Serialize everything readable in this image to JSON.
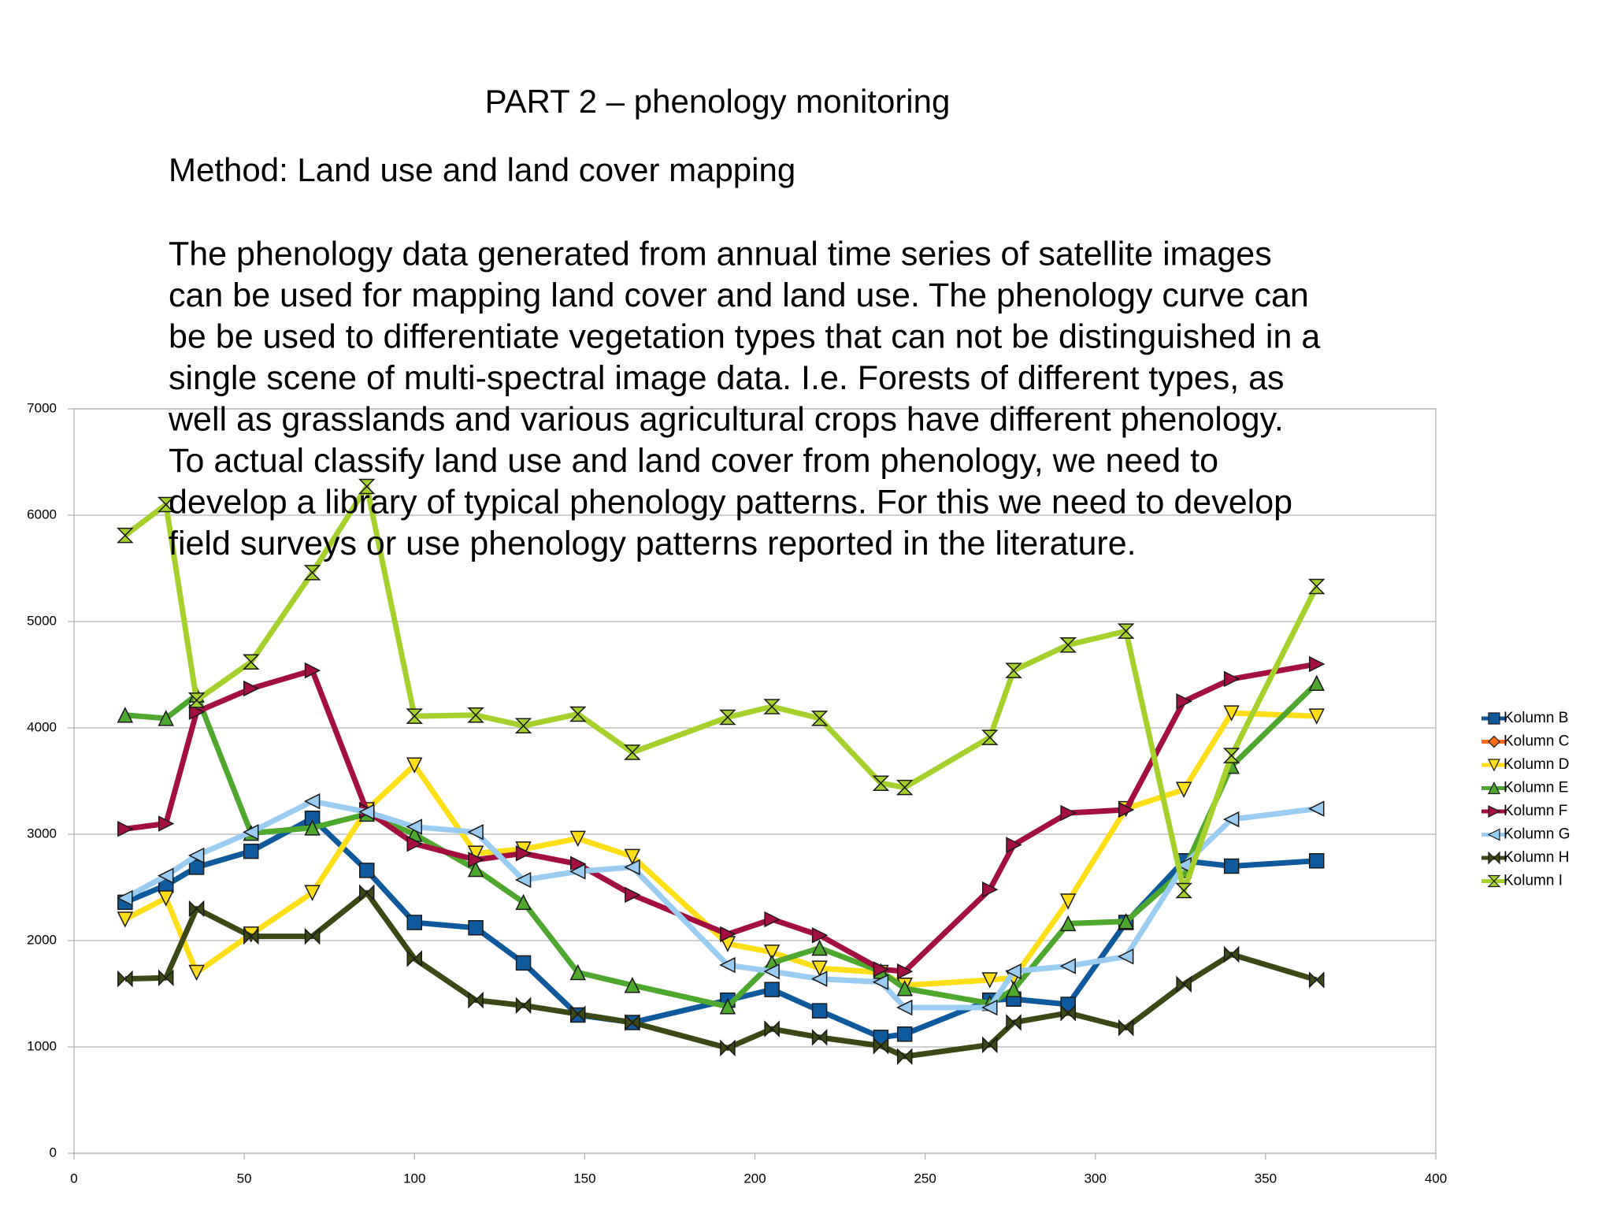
{
  "slide": {
    "title": "PART 2 – phenology monitoring",
    "method": "Method: Land use and land cover mapping",
    "paragraph": [
      "The phenology data generated from annual time series of satellite images",
      "can be used for mapping land cover and land use. The  phenology curve can",
      "be be used to differentiate vegetation types that can not be distinguished in a",
      "single scene of multi-spectral image data. I.e. Forests of different types, as",
      "well as grasslands and various agricultural crops have different phenology.",
      "To actual classify land use and land cover from phenology, we need to",
      "develop a library of typical phenology patterns. For this we need to develop",
      "field surveys or use phenology patterns reported in the literature."
    ]
  },
  "chart_data": {
    "type": "line",
    "x": [
      15,
      27,
      36,
      52,
      70,
      86,
      100,
      118,
      132,
      148,
      164,
      192,
      205,
      219,
      237,
      244,
      269,
      276,
      292,
      309,
      326,
      340,
      365
    ],
    "xlim": [
      0,
      400
    ],
    "xticks": [
      0,
      50,
      100,
      150,
      200,
      250,
      300,
      350,
      400
    ],
    "ylim": [
      0,
      7000
    ],
    "yticks": [
      0,
      1000,
      2000,
      3000,
      4000,
      5000,
      6000,
      7000
    ],
    "grid": true,
    "legend": "right",
    "series": [
      {
        "name": "Kolumn B",
        "color": "#0f5a9c",
        "marker": "square",
        "values": [
          2360,
          2520,
          2690,
          2840,
          3150,
          2660,
          2170,
          2120,
          1790,
          1300,
          1230,
          1440,
          1540,
          1340,
          1090,
          1120,
          1440,
          1450,
          1400,
          2170,
          2750,
          2700,
          2750
        ]
      },
      {
        "name": "Kolumn C",
        "color": "#ff6a13",
        "marker": "diamond",
        "values": [
          null,
          null,
          null,
          null,
          null,
          null,
          null,
          null,
          null,
          null,
          null,
          null,
          null,
          null,
          null,
          null,
          null,
          null,
          null,
          null,
          null,
          null,
          null
        ]
      },
      {
        "name": "Kolumn D",
        "color": "#ffde17",
        "marker": "triangle-down",
        "values": [
          2200,
          2400,
          1700,
          2060,
          2450,
          3230,
          3650,
          2820,
          2860,
          2960,
          2790,
          1970,
          1890,
          1740,
          1700,
          1580,
          1630,
          1650,
          2370,
          3240,
          3420,
          4140,
          4110
        ]
      },
      {
        "name": "Kolumn E",
        "color": "#4ea72e",
        "marker": "triangle-up",
        "values": [
          4120,
          4090,
          4310,
          3010,
          3060,
          3190,
          3000,
          2670,
          2360,
          1700,
          1580,
          1380,
          1790,
          1930,
          1710,
          1550,
          1410,
          1540,
          2160,
          2180,
          2660,
          3640,
          4420
        ]
      },
      {
        "name": "Kolumn F",
        "color": "#a3103f",
        "marker": "triangle-right",
        "values": [
          3050,
          3100,
          4150,
          4370,
          4540,
          3220,
          2910,
          2760,
          2820,
          2720,
          2430,
          2060,
          2200,
          2050,
          1730,
          1710,
          2480,
          2900,
          3200,
          3230,
          4250,
          4460,
          4600
        ]
      },
      {
        "name": "Kolumn G",
        "color": "#99ccf2",
        "marker": "triangle-left",
        "values": [
          2400,
          2610,
          2800,
          3020,
          3310,
          3210,
          3070,
          3020,
          2570,
          2650,
          2690,
          1770,
          1710,
          1640,
          1610,
          1370,
          1370,
          1710,
          1760,
          1850,
          2710,
          3140,
          3240
        ]
      },
      {
        "name": "Kolumn H",
        "color": "#3b4a14",
        "marker": "bowtie",
        "values": [
          1640,
          1650,
          2300,
          2040,
          2040,
          2450,
          1830,
          1440,
          1390,
          1310,
          1230,
          990,
          1170,
          1090,
          1010,
          910,
          1020,
          1230,
          1320,
          1180,
          1590,
          1870,
          1630
        ]
      },
      {
        "name": "Kolumn I",
        "color": "#a6d12c",
        "marker": "hourglass",
        "values": [
          5810,
          6100,
          4260,
          4620,
          5460,
          6270,
          4110,
          4120,
          4020,
          4130,
          3770,
          4100,
          4200,
          4090,
          3480,
          3440,
          3910,
          4540,
          4780,
          4910,
          2470,
          3740,
          5330
        ]
      }
    ]
  }
}
